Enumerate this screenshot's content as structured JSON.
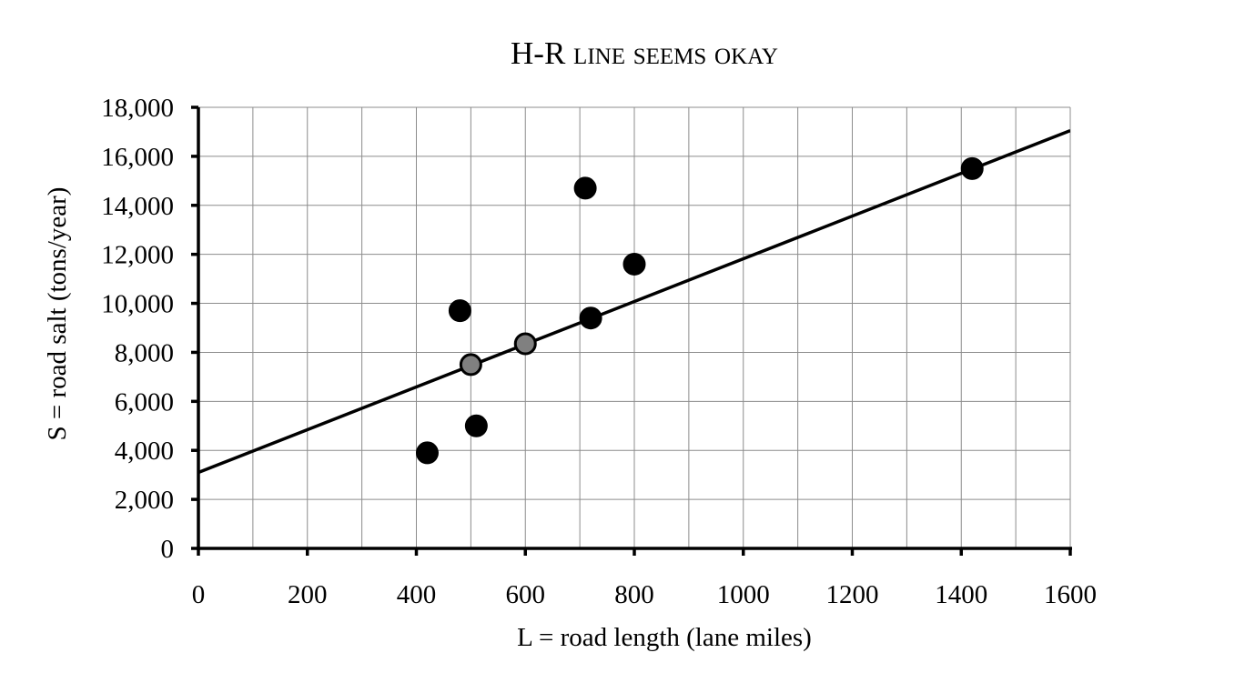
{
  "chart_data": {
    "type": "scatter",
    "title": "H-R line seems okay",
    "xlabel": "L = road length (lane miles)",
    "ylabel": "S = road salt (tons/year)",
    "xlim": [
      0,
      1600
    ],
    "ylim": [
      0,
      18000
    ],
    "x_ticks": [
      "0",
      "200",
      "400",
      "600",
      "800",
      "1000",
      "1200",
      "1400",
      "1600"
    ],
    "y_ticks": [
      "0",
      "2,000",
      "4,000",
      "6,000",
      "8,000",
      "10,000",
      "12,000",
      "14,000",
      "16,000",
      "18,000"
    ],
    "grid": true,
    "series": [
      {
        "color": "#000000",
        "points": [
          {
            "x": 420,
            "y": 3900
          },
          {
            "x": 480,
            "y": 9700
          },
          {
            "x": 510,
            "y": 5000
          },
          {
            "x": 710,
            "y": 14700
          },
          {
            "x": 720,
            "y": 9400
          },
          {
            "x": 800,
            "y": 11600
          },
          {
            "x": 1420,
            "y": 15500
          }
        ]
      },
      {
        "color": "#808080",
        "points": [
          {
            "x": 500,
            "y": 7500
          },
          {
            "x": 600,
            "y": 8350
          }
        ]
      }
    ],
    "fit_line": {
      "x": [
        0,
        1600
      ],
      "y": [
        3100,
        17050
      ]
    }
  }
}
